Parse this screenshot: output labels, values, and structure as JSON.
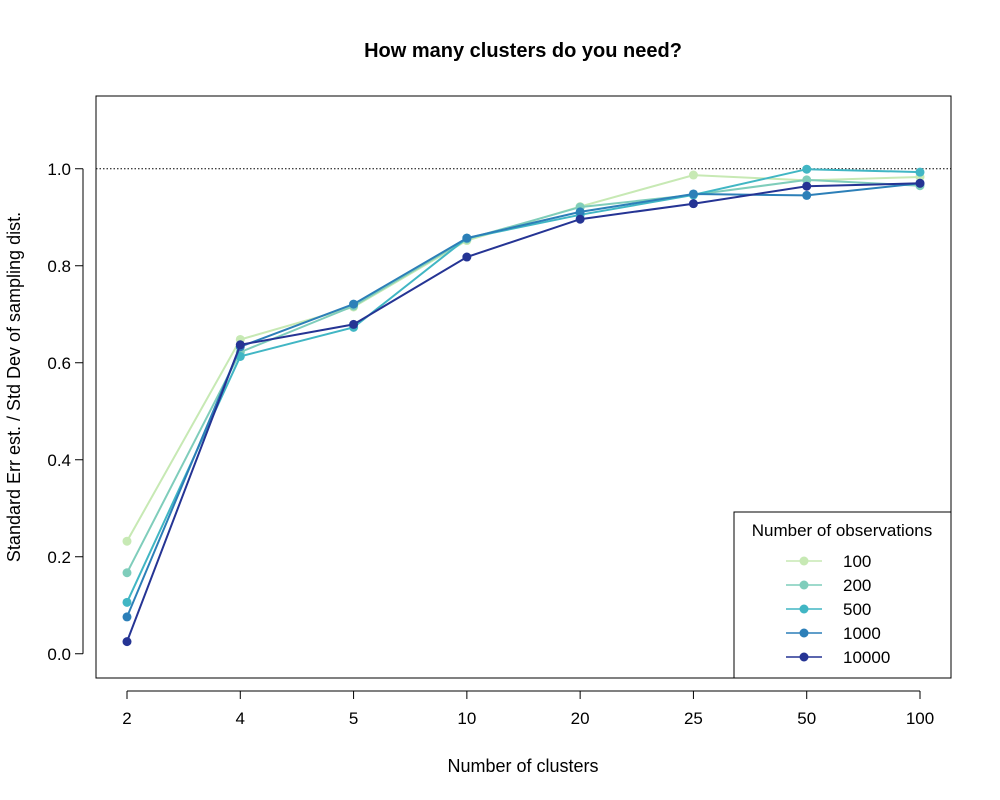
{
  "chart_data": {
    "type": "line",
    "title": "How many clusters do you need?",
    "xlabel": "Number of clusters",
    "ylabel": "Standard Err est. / Std Dev of sampling dist.",
    "categories": [
      "2",
      "4",
      "5",
      "10",
      "20",
      "25",
      "50",
      "100"
    ],
    "ylim": [
      -0.05,
      1.15
    ],
    "yticks": [
      "0.0",
      "0.2",
      "0.4",
      "0.6",
      "0.8",
      "1.0"
    ],
    "reference_line": 1.0,
    "legend": {
      "title": "Number of observations",
      "position": "bottom-right"
    },
    "series": [
      {
        "name": "100",
        "color": "#c7e9b4",
        "values": [
          0.232,
          0.648,
          0.715,
          0.852,
          0.922,
          0.987,
          0.976,
          0.983
        ]
      },
      {
        "name": "200",
        "color": "#7fcdbb",
        "values": [
          0.167,
          0.622,
          0.717,
          0.855,
          0.921,
          0.946,
          0.977,
          0.965
        ]
      },
      {
        "name": "500",
        "color": "#41b6c4",
        "values": [
          0.106,
          0.613,
          0.673,
          0.857,
          0.905,
          0.946,
          0.999,
          0.993
        ]
      },
      {
        "name": "1000",
        "color": "#2c7fb8",
        "values": [
          0.076,
          0.633,
          0.721,
          0.857,
          0.911,
          0.948,
          0.945,
          0.97
        ]
      },
      {
        "name": "10000",
        "color": "#253494",
        "values": [
          0.025,
          0.637,
          0.679,
          0.818,
          0.896,
          0.928,
          0.964,
          0.97
        ]
      }
    ]
  }
}
